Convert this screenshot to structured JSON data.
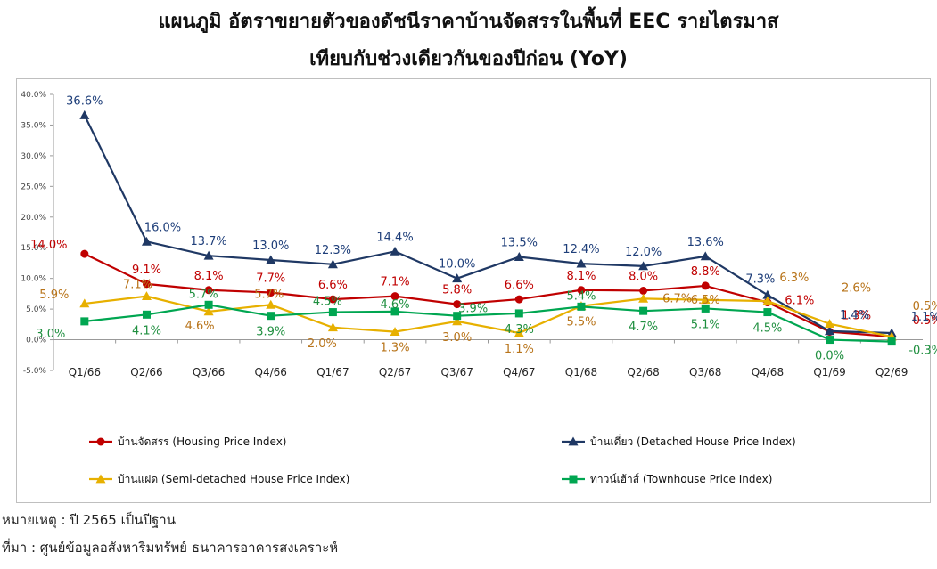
{
  "title_line1": "แผนภูมิ อัตราขยายตัวของดัชนีราคาบ้านจัดสรรในพื้นที่ EEC รายไตรมาส",
  "title_line2": "เทียบกับช่วงเดียวกันของปีก่อน (YoY)",
  "note": "หมายเหตุ : ปี 2565 เป็นปีฐาน",
  "source": "ที่มา : ศูนย์ข้อมูลอสังหาริมทรัพย์ ธนาคารอาคารสงเคราะห์",
  "chart_data": {
    "type": "line",
    "categories": [
      "Q1/66",
      "Q2/66",
      "Q3/66",
      "Q4/66",
      "Q1/67",
      "Q2/67",
      "Q3/67",
      "Q4/67",
      "Q1/68",
      "Q2/68",
      "Q3/68",
      "Q4/68",
      "Q1/69",
      "Q2/69"
    ],
    "ylim": [
      -5,
      40
    ],
    "yticks": [
      -5,
      0,
      5,
      10,
      15,
      20,
      25,
      30,
      35,
      40
    ],
    "ytick_format": "percent_1dp",
    "grid": false,
    "legend_position": "bottom",
    "series": [
      {
        "name": "บ้านจัดสรร (Housing Price Index)",
        "color": "#c00000",
        "label_color": "#c00000",
        "marker": "circle",
        "values": [
          14.0,
          9.1,
          8.1,
          7.7,
          6.6,
          7.1,
          5.8,
          6.6,
          8.1,
          8.0,
          8.8,
          6.1,
          1.3,
          0.5
        ],
        "labels": [
          "14.0%",
          "9.1%",
          "8.1%",
          "7.7%",
          "6.6%",
          "7.1%",
          "5.8%",
          "6.6%",
          "8.1%",
          "8.0%",
          "8.8%",
          "6.1%",
          "1.3%",
          "0.5%"
        ]
      },
      {
        "name": "บ้านเดี่ยว (Detached House Price Index)",
        "color": "#1f3864",
        "label_color": "#1f3f7a",
        "marker": "triangle",
        "values": [
          36.6,
          16.0,
          13.7,
          13.0,
          12.3,
          14.4,
          10.0,
          13.5,
          12.4,
          12.0,
          13.6,
          7.3,
          1.4,
          1.1
        ],
        "labels": [
          "36.6%",
          "16.0%",
          "13.7%",
          "13.0%",
          "12.3%",
          "14.4%",
          "10.0%",
          "13.5%",
          "12.4%",
          "12.0%",
          "13.6%",
          "7.3%",
          "1.4%",
          "1.1%"
        ]
      },
      {
        "name": "บ้านแฝด (Semi-detached House Price Index)",
        "color": "#e7b000",
        "label_color": "#b8741a",
        "marker": "triangle",
        "values": [
          5.9,
          7.1,
          4.6,
          5.7,
          2.0,
          1.3,
          3.0,
          1.1,
          5.5,
          6.7,
          6.5,
          6.3,
          2.6,
          0.5
        ],
        "labels": [
          "5.9%",
          "7.1%",
          "4.6%",
          "5.7%",
          "2.0%",
          "1.3%",
          "3.0%",
          "1.1%",
          "5.5%",
          "6.7%",
          "6.5%",
          "6.3%",
          "2.6%",
          "0.5%"
        ]
      },
      {
        "name": "ทาวน์เฮ้าส์ (Townhouse Price Index)",
        "color": "#00a651",
        "label_color": "#1f8f3f",
        "marker": "square",
        "values": [
          3.0,
          4.1,
          5.7,
          3.9,
          4.5,
          4.6,
          3.9,
          4.3,
          5.4,
          4.7,
          5.1,
          4.5,
          0.0,
          -0.3
        ],
        "labels": [
          "3.0%",
          "4.1%",
          "5.7%",
          "3.9%",
          "4.5%",
          "4.6%",
          "3.9%",
          "4.3%",
          "5.4%",
          "4.7%",
          "5.1%",
          "4.5%",
          "0.0%",
          "-0.3%"
        ]
      }
    ]
  }
}
